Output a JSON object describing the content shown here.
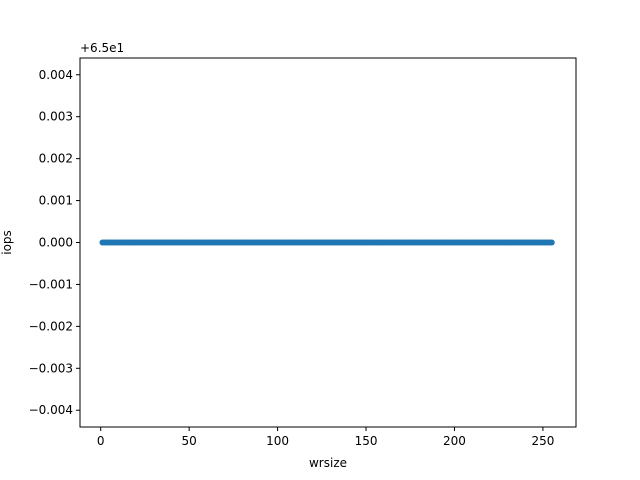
{
  "chart_data": {
    "type": "scatter",
    "title": "",
    "xlabel": "wrsize",
    "ylabel": "iops",
    "y_offset_label": "+6.5e1",
    "x_ticks": [
      0,
      50,
      100,
      150,
      200,
      250
    ],
    "y_ticks": [
      -0.004,
      -0.003,
      -0.002,
      -0.001,
      0.0,
      0.001,
      0.002,
      0.003,
      0.004
    ],
    "y_tick_labels": [
      "−0.004",
      "−0.003",
      "−0.002",
      "−0.001",
      "0.000",
      "0.001",
      "0.002",
      "0.003",
      "0.004"
    ],
    "xlim": [
      -11.7,
      268.7
    ],
    "ylim": [
      -0.0044,
      0.0044
    ],
    "y_offset": 65,
    "series": [
      {
        "x_start": 1,
        "x_end": 255,
        "x_step": 1,
        "y": 65.0,
        "color": "#1f77b4"
      }
    ],
    "grid": false,
    "legend": "none"
  }
}
